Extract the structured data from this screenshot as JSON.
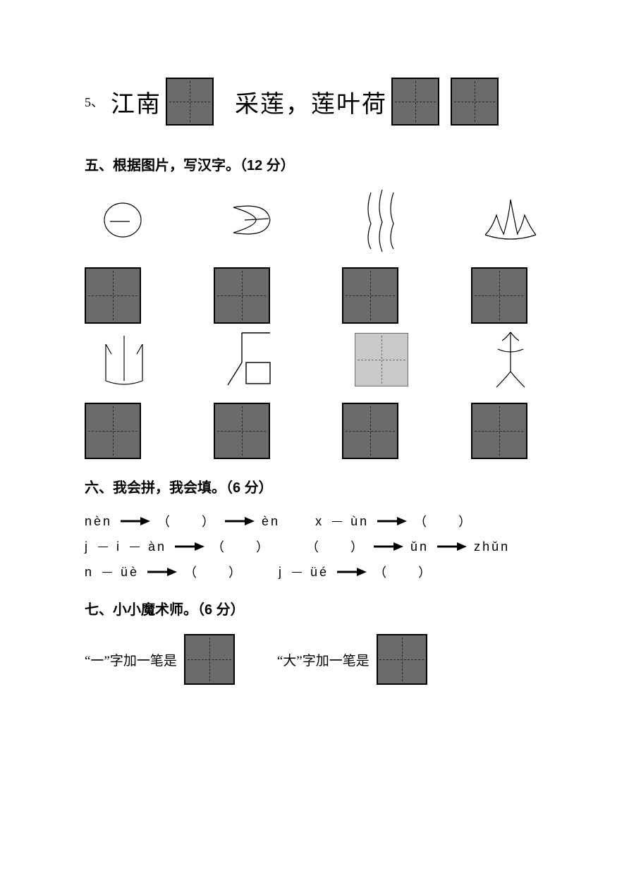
{
  "q5": {
    "num": "5、",
    "text_a": "江南",
    "text_b": "采莲，莲叶荷"
  },
  "section5": {
    "title": "五、根据图片，写汉字。（12 分）"
  },
  "section6": {
    "title": "六、我会拼，我会填。（6 分）",
    "rows": [
      {
        "left": [
          "nèn",
          "arrow",
          "（　　）",
          "arrow",
          "èn"
        ],
        "right": [
          "x",
          "dash",
          "ùn",
          "arrow",
          "（　　）"
        ]
      },
      {
        "left": [
          "j",
          "dash",
          "i",
          "dash",
          "àn",
          "arrow",
          "（　　）"
        ],
        "right": [
          "（　　）",
          "arrow",
          "ǔn",
          "arrow",
          "zhǔn"
        ]
      },
      {
        "left": [
          "n",
          "dash",
          "üè",
          "arrow",
          "（　　）"
        ],
        "right": [
          "j",
          "dash",
          "üé",
          "arrow",
          "（　　）"
        ]
      }
    ]
  },
  "section7": {
    "title": "七、小小魔术师。（6 分）",
    "part_a_prefix": "“一”字加一笔是",
    "part_b_prefix": "“大”字加一笔是"
  },
  "colors": {
    "box_fill": "#6b6b6b",
    "box_border": "#000000",
    "light_box_fill": "#c9c9c9",
    "light_box_border": "#6b6b6b",
    "text": "#000000",
    "background": "#ffffff"
  }
}
